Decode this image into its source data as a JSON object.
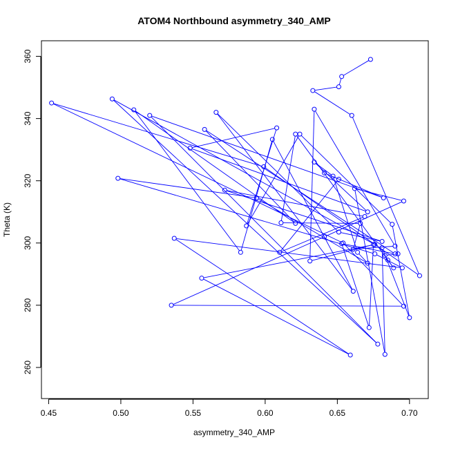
{
  "chart_data": {
    "type": "line",
    "title": "ATOM4 Northbound asymmetry_340_AMP",
    "xlabel": "asymmetry_340_AMP",
    "ylabel": "Theta (K)",
    "xlim": [
      0.445,
      0.713
    ],
    "ylim": [
      250,
      365
    ],
    "xticks": [
      0.45,
      0.5,
      0.55,
      0.6,
      0.65,
      0.7
    ],
    "xtick_labels": [
      "0.45",
      "0.50",
      "0.55",
      "0.60",
      "0.65",
      "0.70"
    ],
    "yticks": [
      260,
      280,
      300,
      320,
      340,
      360
    ],
    "ytick_labels": [
      "260",
      "280",
      "300",
      "320",
      "340",
      "360"
    ],
    "grid": false,
    "legend": "none",
    "series": [
      {
        "color": "#0000ff",
        "marker": "open-circle",
        "x": [
          0.673,
          0.653,
          0.651,
          0.633,
          0.66,
          0.707,
          0.599,
          0.452,
          0.654,
          0.696,
          0.535,
          0.641,
          0.696,
          0.662,
          0.683,
          0.681,
          0.7,
          0.688,
          0.624,
          0.587,
          0.608,
          0.548,
          0.671,
          0.634,
          0.647,
          0.664,
          0.671,
          0.594,
          0.498,
          0.676,
          0.695,
          0.537,
          0.659,
          0.556,
          0.676,
          0.494,
          0.678,
          0.52,
          0.682,
          0.641,
          0.651,
          0.61,
          0.669,
          0.572,
          0.681,
          0.651,
          0.566,
          0.661,
          0.605,
          0.583,
          0.509,
          0.621,
          0.558,
          0.69,
          0.653,
          0.672,
          0.675,
          0.631,
          0.634,
          0.69,
          0.661,
          0.666,
          0.611,
          0.621,
          0.689,
          0.685,
          0.683,
          0.692
        ],
        "y": [
          359,
          353.5,
          350.2,
          349,
          341,
          289.5,
          324.5,
          345,
          300,
          279.7,
          280,
          302,
          313.5,
          317.5,
          264.2,
          298.5,
          276,
          306,
          335,
          305.5,
          337,
          330.5,
          310,
          326,
          321.5,
          297,
          293.5,
          314.5,
          320.8,
          296.5,
          292,
          301.5,
          264,
          288.7,
          299.5,
          346.3,
          267.5,
          341,
          314.5,
          322.5,
          320.5,
          297,
          308.5,
          317,
          300.5,
          303.5,
          342,
          284.5,
          333.3,
          297,
          342.8,
          306.3,
          336.5,
          296.5,
          299.8,
          272.8,
          299.5,
          294.2,
          343,
          299,
          298,
          306.3,
          306.5,
          335,
          292,
          294.5,
          296,
          296.5
        ]
      }
    ]
  }
}
